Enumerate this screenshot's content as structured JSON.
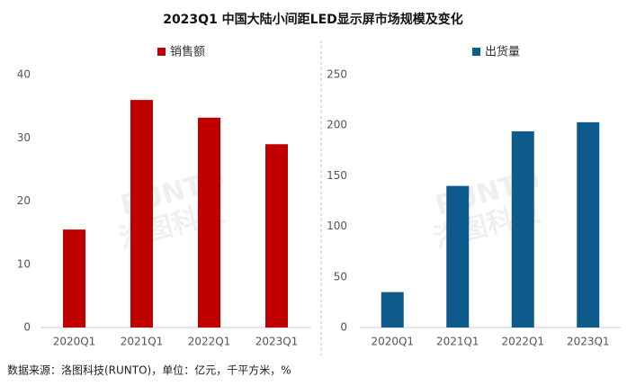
{
  "title": "2023Q1 中国大陆小间距LED显示屏市场规模及变化",
  "source": "数据来源：洛图科技(RUNTO)，单位：亿元，千平方米，%",
  "watermark": [
    "RUNTO",
    "洛图科技"
  ],
  "chart_data": [
    {
      "type": "bar",
      "categories": [
        "2020Q1",
        "2021Q1",
        "2022Q1",
        "2023Q1"
      ],
      "series": [
        {
          "name": "销售额",
          "color": "#c00000",
          "values": [
            15.5,
            36,
            33.2,
            29
          ]
        }
      ],
      "ylim": [
        0,
        40
      ],
      "yticks": [
        0,
        10,
        20,
        30,
        40
      ],
      "grid": false
    },
    {
      "type": "bar",
      "categories": [
        "2020Q1",
        "2021Q1",
        "2022Q1",
        "2023Q1"
      ],
      "series": [
        {
          "name": "出货量",
          "color": "#0e5a8a",
          "values": [
            35,
            140,
            194,
            203
          ]
        }
      ],
      "ylim": [
        0,
        250
      ],
      "yticks": [
        0,
        50,
        100,
        150,
        200,
        250
      ],
      "grid": false
    }
  ]
}
